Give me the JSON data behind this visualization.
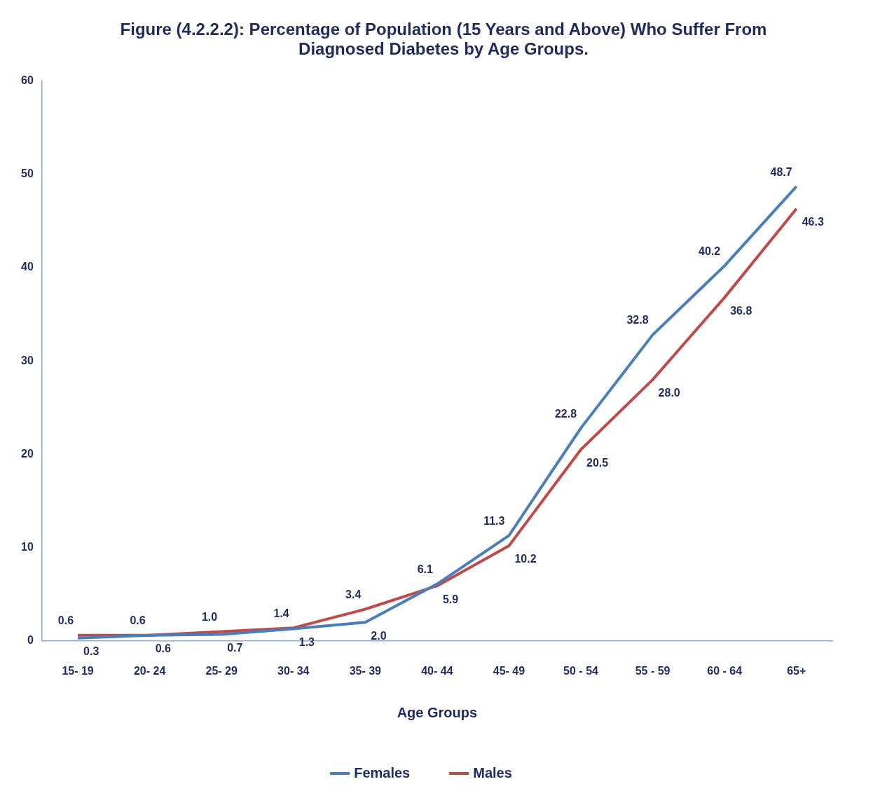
{
  "chart_data": {
    "type": "line",
    "title": "Figure (4.2.2.2): Percentage of  Population (15 Years and Above) Who Suffer From Diagnosed Diabetes by Age Groups.",
    "xlabel": "Age Groups",
    "categories": [
      "15- 19",
      "20- 24",
      "25- 29",
      "30- 34",
      "35- 39",
      "40- 44",
      "45- 49",
      "50 - 54",
      "55 - 59",
      "60 - 64",
      "65+"
    ],
    "series": [
      {
        "name": "Females",
        "color": "#4a7ebb",
        "values": [
          0.3,
          0.6,
          0.7,
          1.3,
          2.0,
          6.1,
          11.3,
          22.8,
          32.8,
          40.2,
          48.7
        ],
        "value_labels": [
          "0.3",
          "0.6",
          "0.7",
          "1.3",
          "2.0",
          "6.1",
          "11.3",
          "22.8",
          "32.8",
          "40.2",
          "48.7"
        ]
      },
      {
        "name": "Males",
        "color": "#be4b48",
        "values": [
          0.6,
          0.6,
          1.0,
          1.4,
          3.4,
          5.9,
          10.2,
          20.5,
          28.0,
          36.8,
          46.3
        ],
        "value_labels": [
          "0.6",
          "0.6",
          "1.0",
          "1.4",
          "3.4",
          "5.9",
          "10.2",
          "20.5",
          "28.0",
          "36.8",
          "46.3"
        ]
      }
    ],
    "ylim": [
      0,
      60
    ],
    "yticks": [
      0,
      10,
      20,
      30,
      40,
      50,
      60
    ],
    "legend": "bottom",
    "marker": "none",
    "line_style": "solid"
  }
}
